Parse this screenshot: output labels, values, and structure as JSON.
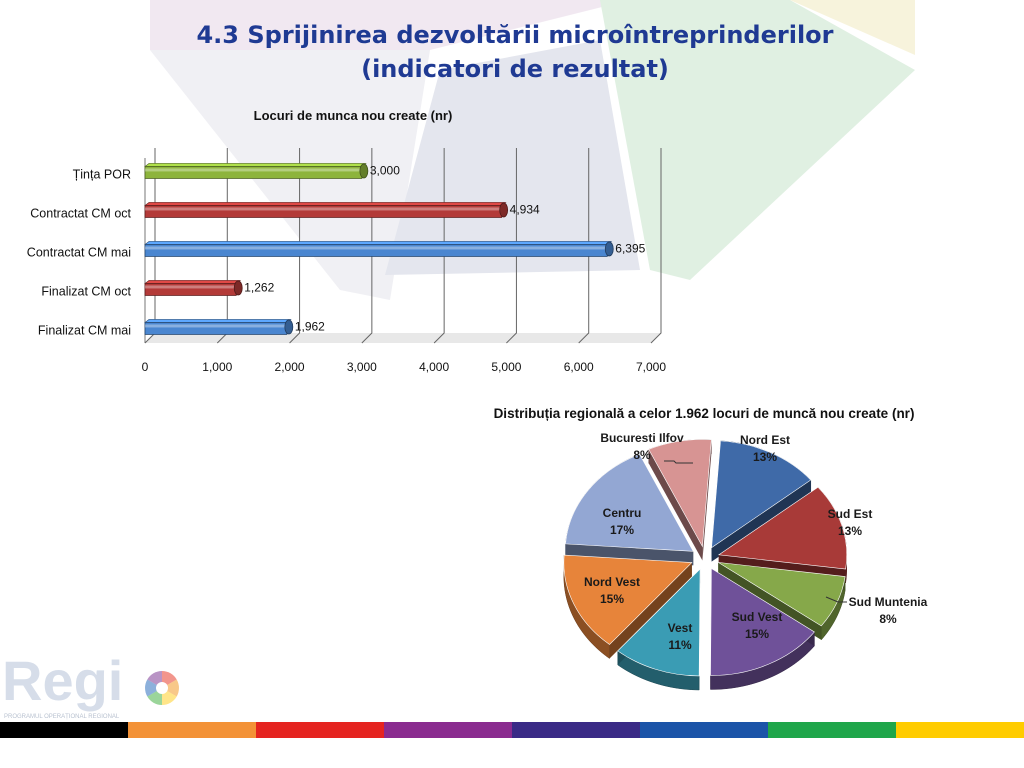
{
  "slide": {
    "title_line1": "4.3 Sprijinirea dezvoltării microîntreprinderilor",
    "title_line2": "(indicatori de rezultat)"
  },
  "logo": {
    "text": "Regi",
    "subtitle": "PROGRAMUL OPERAȚIONAL REGIONAL"
  },
  "footer_stripe_colors": [
    "#000000",
    "#f39237",
    "#e52420",
    "#8a2b8f",
    "#3a2a86",
    "#1b54a8",
    "#1fa64a",
    "#ffcc00"
  ],
  "chart_data": [
    {
      "type": "bar",
      "orientation": "horizontal",
      "title": "Locuri de  munca nou create (nr)",
      "categories": [
        "Țința POR",
        "Contractat CM oct",
        "Contractat CM mai",
        "Finalizat CM oct",
        "Finalizat CM mai"
      ],
      "values": [
        3000,
        4934,
        6395,
        1262,
        1962
      ],
      "value_labels": [
        "3,000",
        "4,934",
        "6,395",
        "1,262",
        "1,962"
      ],
      "bar_colors": [
        "#8db43c",
        "#b33a38",
        "#4a86d0",
        "#b33a38",
        "#4a86d0"
      ],
      "xlim": [
        0,
        7000
      ],
      "x_ticks": [
        "0",
        "1,000",
        "2,000",
        "3,000",
        "4,000",
        "5,000",
        "6,000",
        "7,000"
      ],
      "grid": true,
      "legend": "none"
    },
    {
      "type": "pie",
      "style": "3d-exploded",
      "title": "Distribuția regională a celor 1.962 locuri de muncă nou create (nr)",
      "slices": [
        {
          "name": "Nord Est",
          "pct": "13%",
          "value": 13,
          "color": "#3f6aa8"
        },
        {
          "name": "Sud Est",
          "pct": "13%",
          "value": 13,
          "color": "#a83a38"
        },
        {
          "name": "Sud Muntenia",
          "pct": "8%",
          "value": 8,
          "color": "#86a84a"
        },
        {
          "name": "Sud Vest",
          "pct": "15%",
          "value": 15,
          "color": "#6f5199"
        },
        {
          "name": "Vest",
          "pct": "11%",
          "value": 11,
          "color": "#3a9cb4"
        },
        {
          "name": "Nord Vest",
          "pct": "15%",
          "value": 15,
          "color": "#e7843a"
        },
        {
          "name": "Centru",
          "pct": "17%",
          "value": 17,
          "color": "#93a7d3"
        },
        {
          "name": "Bucuresti Ilfov",
          "pct": "8%",
          "value": 8,
          "color": "#d79493"
        }
      ]
    }
  ]
}
